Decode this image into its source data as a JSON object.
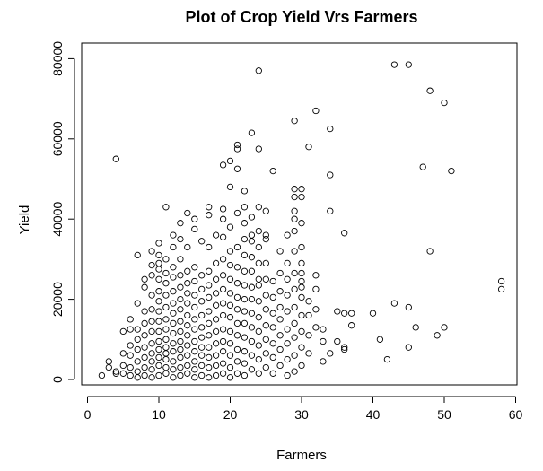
{
  "chart_data": {
    "type": "scatter",
    "title": "Plot of Crop Yield Vrs Farmers",
    "xlabel": "Farmers",
    "ylabel": "Yield",
    "xlim": [
      0,
      60
    ],
    "ylim": [
      0,
      80000
    ],
    "x_ticks": [
      "0",
      "10",
      "20",
      "30",
      "40",
      "50",
      "60"
    ],
    "y_ticks": [
      "0",
      "20000",
      "40000",
      "60000",
      "80000"
    ],
    "grid": false,
    "legend": "none",
    "marker": "open-circle",
    "points": [
      [
        2,
        1000
      ],
      [
        3,
        3000
      ],
      [
        3,
        4500
      ],
      [
        4,
        2000
      ],
      [
        4,
        1500
      ],
      [
        4,
        55000
      ],
      [
        5,
        1500
      ],
      [
        5,
        3500
      ],
      [
        5,
        6500
      ],
      [
        5,
        12000
      ],
      [
        6,
        1000
      ],
      [
        6,
        3000
      ],
      [
        6,
        6000
      ],
      [
        6,
        8500
      ],
      [
        6,
        12500
      ],
      [
        6,
        15000
      ],
      [
        7,
        500
      ],
      [
        7,
        2000
      ],
      [
        7,
        4500
      ],
      [
        7,
        7500
      ],
      [
        7,
        10000
      ],
      [
        7,
        12500
      ],
      [
        7,
        19000
      ],
      [
        7,
        31000
      ],
      [
        8,
        1000
      ],
      [
        8,
        3000
      ],
      [
        8,
        5500
      ],
      [
        8,
        8000
      ],
      [
        8,
        11000
      ],
      [
        8,
        14000
      ],
      [
        8,
        17000
      ],
      [
        8,
        23000
      ],
      [
        8,
        25000
      ],
      [
        9,
        500
      ],
      [
        9,
        2500
      ],
      [
        9,
        4500
      ],
      [
        9,
        6500
      ],
      [
        9,
        9000
      ],
      [
        9,
        12000
      ],
      [
        9,
        14500
      ],
      [
        9,
        17500
      ],
      [
        9,
        21000
      ],
      [
        9,
        26000
      ],
      [
        9,
        28500
      ],
      [
        9,
        32000
      ],
      [
        10,
        1000
      ],
      [
        10,
        3500
      ],
      [
        10,
        5500
      ],
      [
        10,
        7500
      ],
      [
        10,
        9500
      ],
      [
        10,
        12000
      ],
      [
        10,
        14500
      ],
      [
        10,
        17000
      ],
      [
        10,
        19500
      ],
      [
        10,
        22000
      ],
      [
        10,
        25000
      ],
      [
        10,
        27500
      ],
      [
        10,
        29000
      ],
      [
        10,
        31000
      ],
      [
        10,
        34000
      ],
      [
        11,
        1500
      ],
      [
        11,
        3000
      ],
      [
        11,
        5000
      ],
      [
        11,
        6500
      ],
      [
        11,
        8000
      ],
      [
        11,
        10000
      ],
      [
        11,
        12500
      ],
      [
        11,
        15000
      ],
      [
        11,
        18000
      ],
      [
        11,
        21000
      ],
      [
        11,
        24000
      ],
      [
        11,
        26500
      ],
      [
        11,
        30000
      ],
      [
        11,
        43000
      ],
      [
        12,
        500
      ],
      [
        12,
        2500
      ],
      [
        12,
        4500
      ],
      [
        12,
        7000
      ],
      [
        12,
        9000
      ],
      [
        12,
        11500
      ],
      [
        12,
        14000
      ],
      [
        12,
        16500
      ],
      [
        12,
        19000
      ],
      [
        12,
        22000
      ],
      [
        12,
        25500
      ],
      [
        12,
        28000
      ],
      [
        12,
        33000
      ],
      [
        12,
        36000
      ],
      [
        13,
        1000
      ],
      [
        13,
        3000
      ],
      [
        13,
        5500
      ],
      [
        13,
        7500
      ],
      [
        13,
        9500
      ],
      [
        13,
        12000
      ],
      [
        13,
        14500
      ],
      [
        13,
        17500
      ],
      [
        13,
        20000
      ],
      [
        13,
        23000
      ],
      [
        13,
        26000
      ],
      [
        13,
        30000
      ],
      [
        13,
        35000
      ],
      [
        13,
        39000
      ],
      [
        14,
        1500
      ],
      [
        14,
        3500
      ],
      [
        14,
        6000
      ],
      [
        14,
        8500
      ],
      [
        14,
        11000
      ],
      [
        14,
        13500
      ],
      [
        14,
        16000
      ],
      [
        14,
        19000
      ],
      [
        14,
        21500
      ],
      [
        14,
        24000
      ],
      [
        14,
        27000
      ],
      [
        14,
        33000
      ],
      [
        14,
        41500
      ],
      [
        15,
        500
      ],
      [
        15,
        2500
      ],
      [
        15,
        4500
      ],
      [
        15,
        7000
      ],
      [
        15,
        9500
      ],
      [
        15,
        12500
      ],
      [
        15,
        15000
      ],
      [
        15,
        18000
      ],
      [
        15,
        21000
      ],
      [
        15,
        24500
      ],
      [
        15,
        28000
      ],
      [
        15,
        37500
      ],
      [
        15,
        40000
      ],
      [
        16,
        1000
      ],
      [
        16,
        3500
      ],
      [
        16,
        6000
      ],
      [
        16,
        8000
      ],
      [
        16,
        10500
      ],
      [
        16,
        13000
      ],
      [
        16,
        16000
      ],
      [
        16,
        19500
      ],
      [
        16,
        22500
      ],
      [
        16,
        26000
      ],
      [
        16,
        34500
      ],
      [
        17,
        500
      ],
      [
        17,
        3000
      ],
      [
        17,
        5500
      ],
      [
        17,
        8000
      ],
      [
        17,
        11000
      ],
      [
        17,
        14000
      ],
      [
        17,
        17000
      ],
      [
        17,
        20500
      ],
      [
        17,
        23500
      ],
      [
        17,
        27000
      ],
      [
        17,
        33000
      ],
      [
        17,
        41000
      ],
      [
        17,
        43000
      ],
      [
        18,
        1000
      ],
      [
        18,
        3500
      ],
      [
        18,
        6000
      ],
      [
        18,
        9000
      ],
      [
        18,
        12000
      ],
      [
        18,
        15000
      ],
      [
        18,
        18500
      ],
      [
        18,
        21500
      ],
      [
        18,
        25000
      ],
      [
        18,
        29000
      ],
      [
        18,
        36000
      ],
      [
        19,
        1500
      ],
      [
        19,
        4000
      ],
      [
        19,
        7000
      ],
      [
        19,
        9500
      ],
      [
        19,
        12500
      ],
      [
        19,
        16000
      ],
      [
        19,
        19000
      ],
      [
        19,
        22500
      ],
      [
        19,
        26000
      ],
      [
        19,
        30000
      ],
      [
        19,
        35500
      ],
      [
        19,
        40000
      ],
      [
        19,
        42500
      ],
      [
        19,
        53500
      ],
      [
        20,
        500
      ],
      [
        20,
        3000
      ],
      [
        20,
        6000
      ],
      [
        20,
        9000
      ],
      [
        20,
        12000
      ],
      [
        20,
        15500
      ],
      [
        20,
        18500
      ],
      [
        20,
        21500
      ],
      [
        20,
        25000
      ],
      [
        20,
        28500
      ],
      [
        20,
        32000
      ],
      [
        20,
        38000
      ],
      [
        20,
        48000
      ],
      [
        20,
        54500
      ],
      [
        21,
        1500
      ],
      [
        21,
        4500
      ],
      [
        21,
        7500
      ],
      [
        21,
        11000
      ],
      [
        21,
        14000
      ],
      [
        21,
        17500
      ],
      [
        21,
        20500
      ],
      [
        21,
        24000
      ],
      [
        21,
        28000
      ],
      [
        21,
        33000
      ],
      [
        21,
        41500
      ],
      [
        21,
        52500
      ],
      [
        21,
        57500
      ],
      [
        21,
        58500
      ],
      [
        22,
        1000
      ],
      [
        22,
        4000
      ],
      [
        22,
        7000
      ],
      [
        22,
        10500
      ],
      [
        22,
        14000
      ],
      [
        22,
        17000
      ],
      [
        22,
        20000
      ],
      [
        22,
        23500
      ],
      [
        22,
        27000
      ],
      [
        22,
        31000
      ],
      [
        22,
        35000
      ],
      [
        22,
        39000
      ],
      [
        22,
        43000
      ],
      [
        22,
        47000
      ],
      [
        23,
        2500
      ],
      [
        23,
        6000
      ],
      [
        23,
        9500
      ],
      [
        23,
        13000
      ],
      [
        23,
        16500
      ],
      [
        23,
        20000
      ],
      [
        23,
        23000
      ],
      [
        23,
        27000
      ],
      [
        23,
        30500
      ],
      [
        23,
        34500
      ],
      [
        23,
        36000
      ],
      [
        23,
        40500
      ],
      [
        23,
        61500
      ],
      [
        24,
        1500
      ],
      [
        24,
        5000
      ],
      [
        24,
        8500
      ],
      [
        24,
        12000
      ],
      [
        24,
        15500
      ],
      [
        24,
        19500
      ],
      [
        24,
        23500
      ],
      [
        24,
        25000
      ],
      [
        24,
        29000
      ],
      [
        24,
        33000
      ],
      [
        24,
        37000
      ],
      [
        24,
        43000
      ],
      [
        24,
        57500
      ],
      [
        24,
        77000
      ],
      [
        25,
        3000
      ],
      [
        25,
        6500
      ],
      [
        25,
        10000
      ],
      [
        25,
        13500
      ],
      [
        25,
        17500
      ],
      [
        25,
        21000
      ],
      [
        25,
        25000
      ],
      [
        25,
        29000
      ],
      [
        25,
        35000
      ],
      [
        25,
        36000
      ],
      [
        25,
        42000
      ],
      [
        26,
        1500
      ],
      [
        26,
        5500
      ],
      [
        26,
        9000
      ],
      [
        26,
        13000
      ],
      [
        26,
        16500
      ],
      [
        26,
        20500
      ],
      [
        26,
        24500
      ],
      [
        26,
        52000
      ],
      [
        27,
        3500
      ],
      [
        27,
        7500
      ],
      [
        27,
        11000
      ],
      [
        27,
        15000
      ],
      [
        27,
        18000
      ],
      [
        27,
        22000
      ],
      [
        27,
        26500
      ],
      [
        27,
        32000
      ],
      [
        28,
        1000
      ],
      [
        28,
        5000
      ],
      [
        28,
        9000
      ],
      [
        28,
        12500
      ],
      [
        28,
        17000
      ],
      [
        28,
        21000
      ],
      [
        28,
        25000
      ],
      [
        28,
        29000
      ],
      [
        28,
        36000
      ],
      [
        29,
        2000
      ],
      [
        29,
        6000
      ],
      [
        29,
        10500
      ],
      [
        29,
        14000
      ],
      [
        29,
        18000
      ],
      [
        29,
        22500
      ],
      [
        29,
        26500
      ],
      [
        29,
        32000
      ],
      [
        29,
        37000
      ],
      [
        29,
        40000
      ],
      [
        29,
        42000
      ],
      [
        29,
        45500
      ],
      [
        29,
        47500
      ],
      [
        29,
        64500
      ],
      [
        30,
        3500
      ],
      [
        30,
        8000
      ],
      [
        30,
        12000
      ],
      [
        30,
        16000
      ],
      [
        30,
        20500
      ],
      [
        30,
        23000
      ],
      [
        30,
        24500
      ],
      [
        30,
        26500
      ],
      [
        30,
        29000
      ],
      [
        30,
        33000
      ],
      [
        30,
        39000
      ],
      [
        30,
        45500
      ],
      [
        30,
        47500
      ],
      [
        31,
        6500
      ],
      [
        31,
        11000
      ],
      [
        31,
        16000
      ],
      [
        31,
        19500
      ],
      [
        31,
        58000
      ],
      [
        32,
        13000
      ],
      [
        32,
        17500
      ],
      [
        32,
        22500
      ],
      [
        32,
        26000
      ],
      [
        32,
        67000
      ],
      [
        33,
        4500
      ],
      [
        33,
        9500
      ],
      [
        33,
        12500
      ],
      [
        34,
        6500
      ],
      [
        34,
        42000
      ],
      [
        34,
        51000
      ],
      [
        34,
        62500
      ],
      [
        35,
        9500
      ],
      [
        35,
        17000
      ],
      [
        36,
        7500
      ],
      [
        36,
        8000
      ],
      [
        36,
        16500
      ],
      [
        36,
        36500
      ],
      [
        37,
        13500
      ],
      [
        37,
        16500
      ],
      [
        40,
        16500
      ],
      [
        41,
        10000
      ],
      [
        42,
        5000
      ],
      [
        43,
        19000
      ],
      [
        43,
        78500
      ],
      [
        45,
        8000
      ],
      [
        45,
        18000
      ],
      [
        45,
        78500
      ],
      [
        46,
        13000
      ],
      [
        47,
        53000
      ],
      [
        48,
        32000
      ],
      [
        48,
        72000
      ],
      [
        49,
        11000
      ],
      [
        50,
        13000
      ],
      [
        50,
        69000
      ],
      [
        51,
        52000
      ],
      [
        58,
        22500
      ],
      [
        58,
        24500
      ]
    ]
  }
}
